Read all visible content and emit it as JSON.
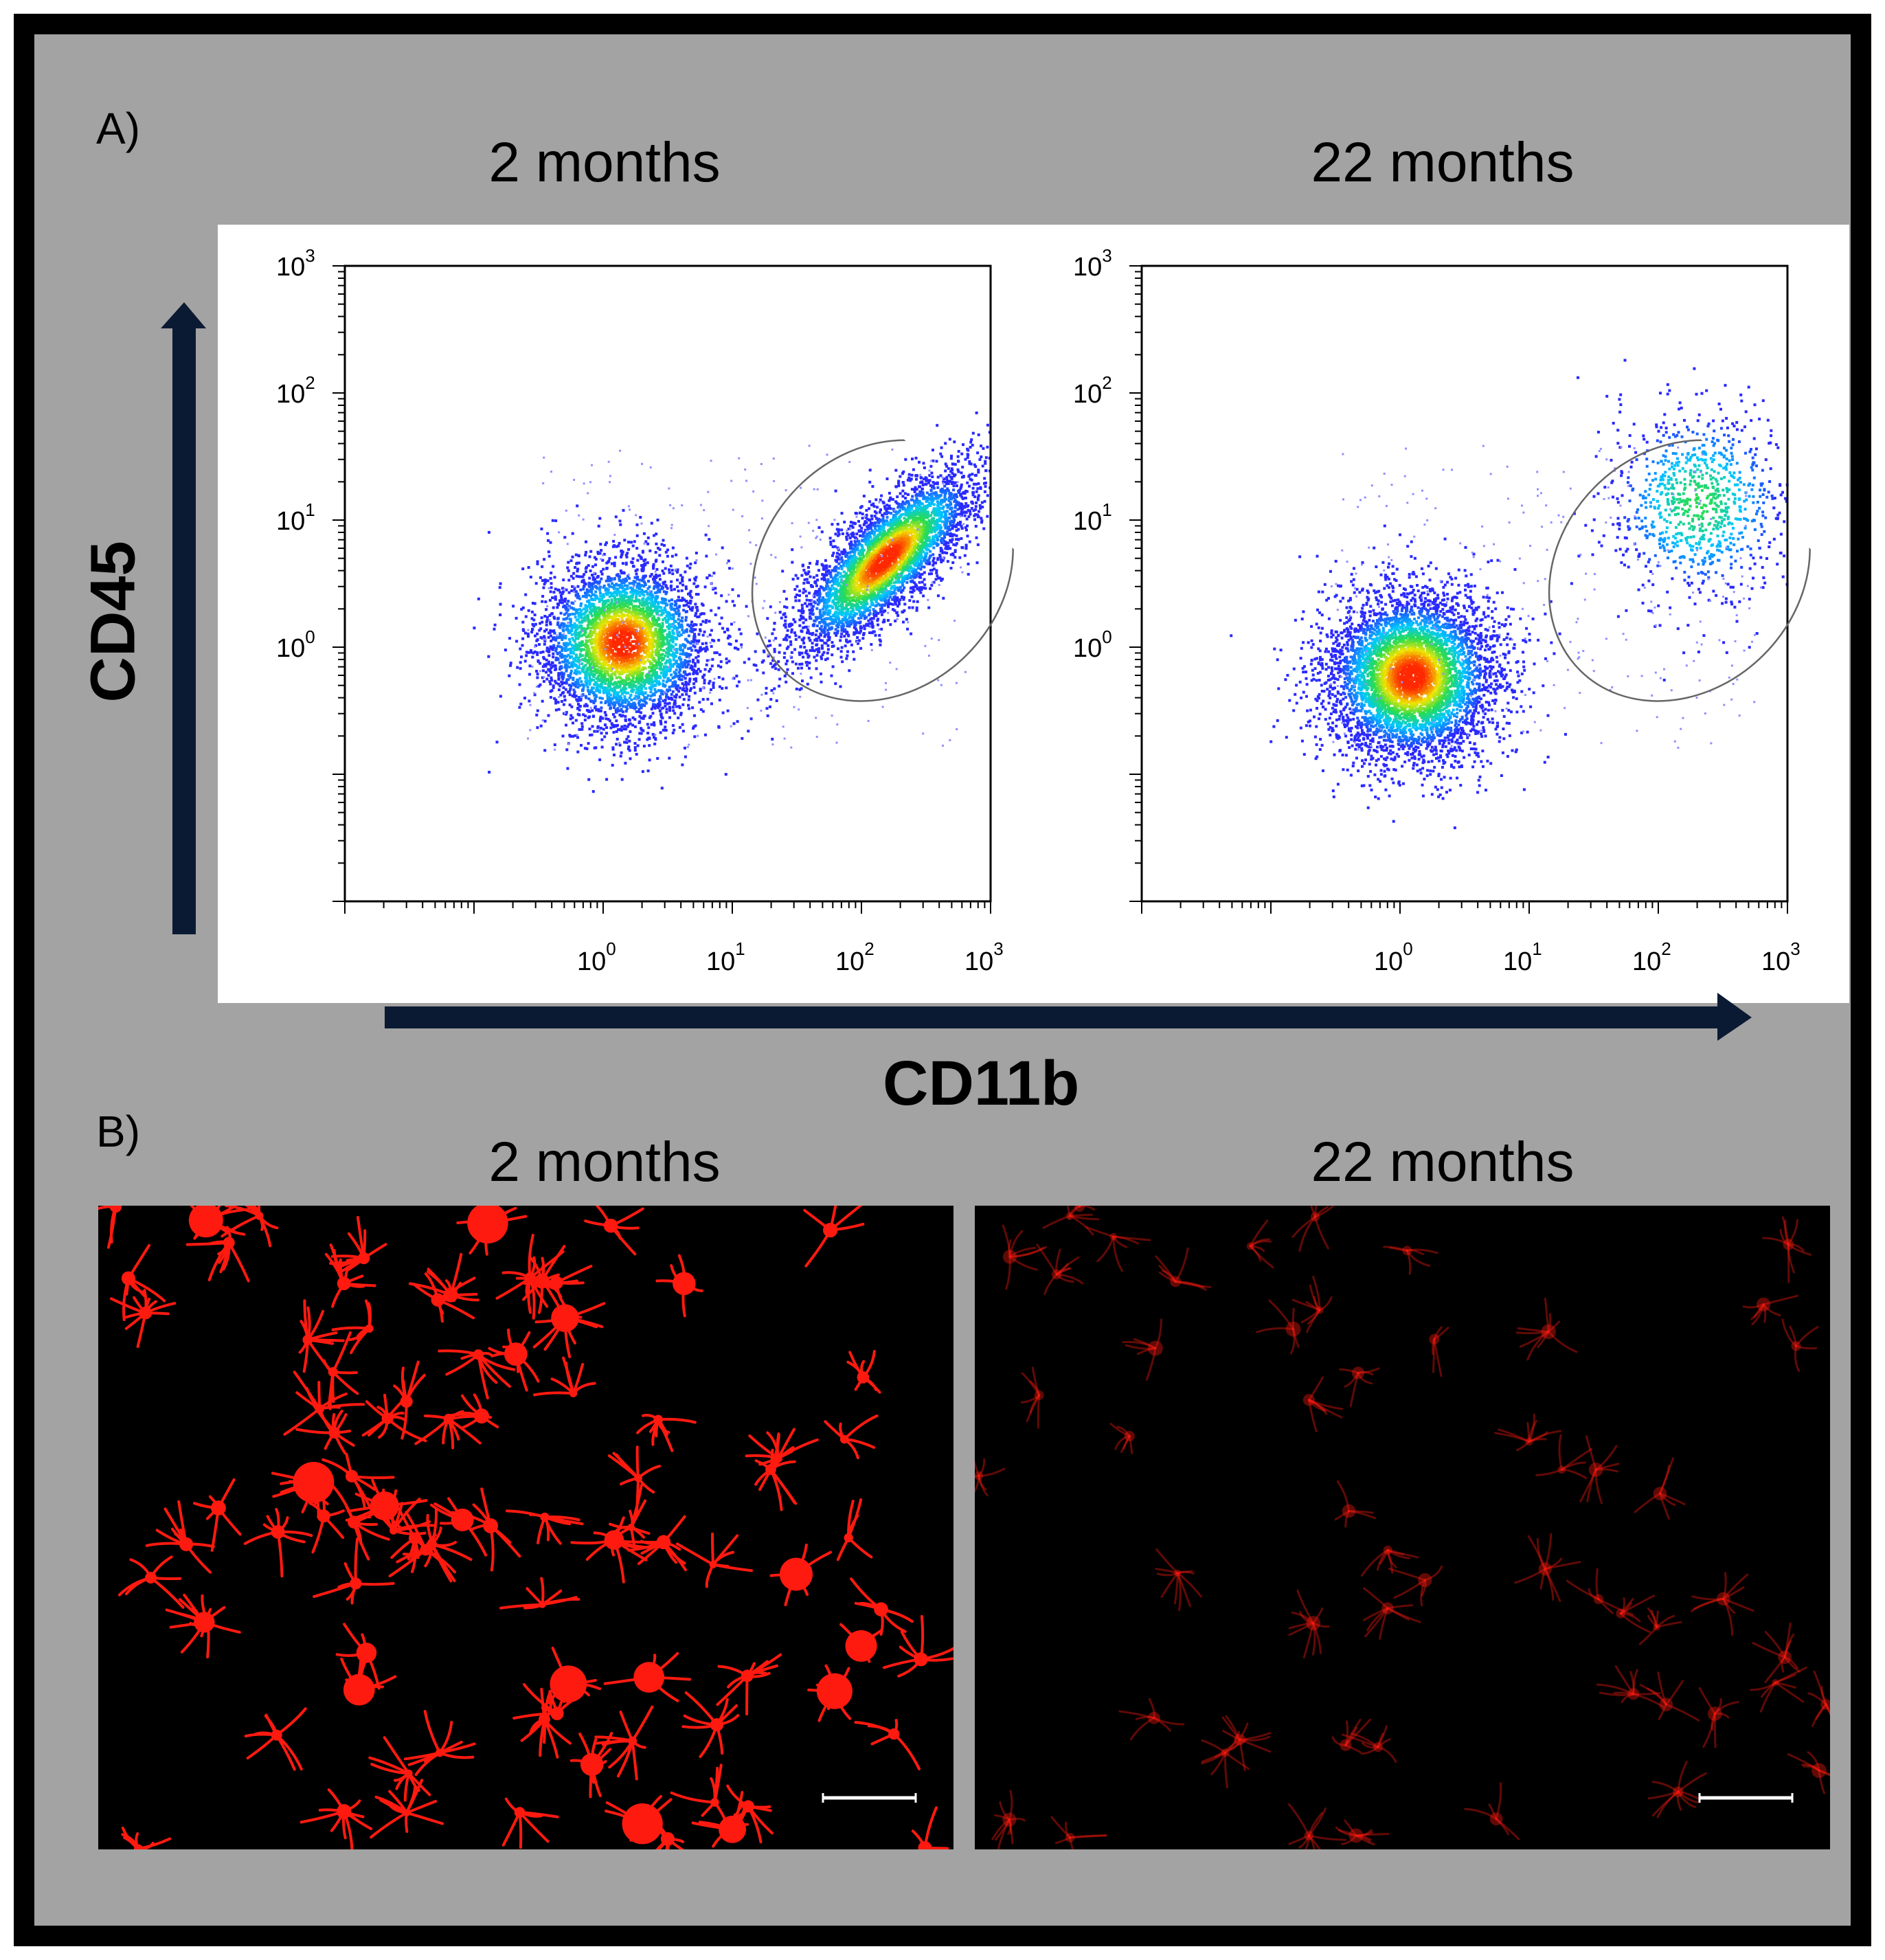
{
  "panel_a": {
    "label": "A)",
    "left_title": "2 months",
    "right_title": "22 months"
  },
  "panel_b": {
    "label": "B)",
    "left_title": "2 months",
    "right_title": "22 months"
  },
  "axis_names": {
    "x": "CD11b",
    "y": "CD45"
  },
  "colors": {
    "background": "#a3a3a3",
    "frame": "#000000",
    "arrow": "#0b1a33",
    "density_low": "#2020ff",
    "density_high": "#ff2000",
    "stain": "#ff1a10"
  },
  "chart_data": [
    {
      "type": "scatter",
      "subtitle": "2 months",
      "xlabel": "CD11b",
      "ylabel": "CD45",
      "xscale": "log",
      "yscale": "log",
      "xlim": [
        0.01,
        1000
      ],
      "ylim": [
        0.01,
        1000
      ],
      "xticks": [
        {
          "base": "10",
          "exp": "0"
        },
        {
          "base": "10",
          "exp": "1"
        },
        {
          "base": "10",
          "exp": "2"
        },
        {
          "base": "10",
          "exp": "3"
        }
      ],
      "yticks": [
        {
          "base": "10",
          "exp": "0"
        },
        {
          "base": "10",
          "exp": "1"
        },
        {
          "base": "10",
          "exp": "2"
        },
        {
          "base": "10",
          "exp": "3"
        }
      ],
      "gate": {
        "x_range": [
          8,
          1000
        ],
        "y_range": [
          0.2,
          80
        ]
      },
      "populations": [
        {
          "name": "",
          "center": [
            1.4,
            1.1
          ],
          "n": 4200
        },
        {
          "name": "",
          "center": [
            150,
            5
          ],
          "n": 4200
        }
      ]
    },
    {
      "type": "scatter",
      "subtitle": "22 months",
      "xlabel": "CD11b",
      "ylabel": "CD45",
      "xscale": "log",
      "yscale": "log",
      "xlim": [
        0.01,
        1000
      ],
      "ylim": [
        0.01,
        1000
      ],
      "xticks": [
        {
          "base": "10",
          "exp": "0"
        },
        {
          "base": "10",
          "exp": "1"
        },
        {
          "base": "10",
          "exp": "2"
        },
        {
          "base": "10",
          "exp": "3"
        }
      ],
      "yticks": [
        {
          "base": "10",
          "exp": "0"
        },
        {
          "base": "10",
          "exp": "1"
        },
        {
          "base": "10",
          "exp": "2"
        },
        {
          "base": "10",
          "exp": "3"
        }
      ],
      "gate": {
        "x_range": [
          8,
          1000
        ],
        "y_range": [
          0.2,
          80
        ]
      },
      "populations": [
        {
          "name": "",
          "center": [
            1.2,
            0.6
          ],
          "n": 5200
        },
        {
          "name": "",
          "center": [
            200,
            14
          ],
          "n": 900
        }
      ]
    }
  ],
  "micrographs": [
    {
      "subtitle": "2 months",
      "stain_intensity": 1.0,
      "cell_count": 90
    },
    {
      "subtitle": "22 months",
      "stain_intensity": 0.38,
      "cell_count": 55
    }
  ]
}
